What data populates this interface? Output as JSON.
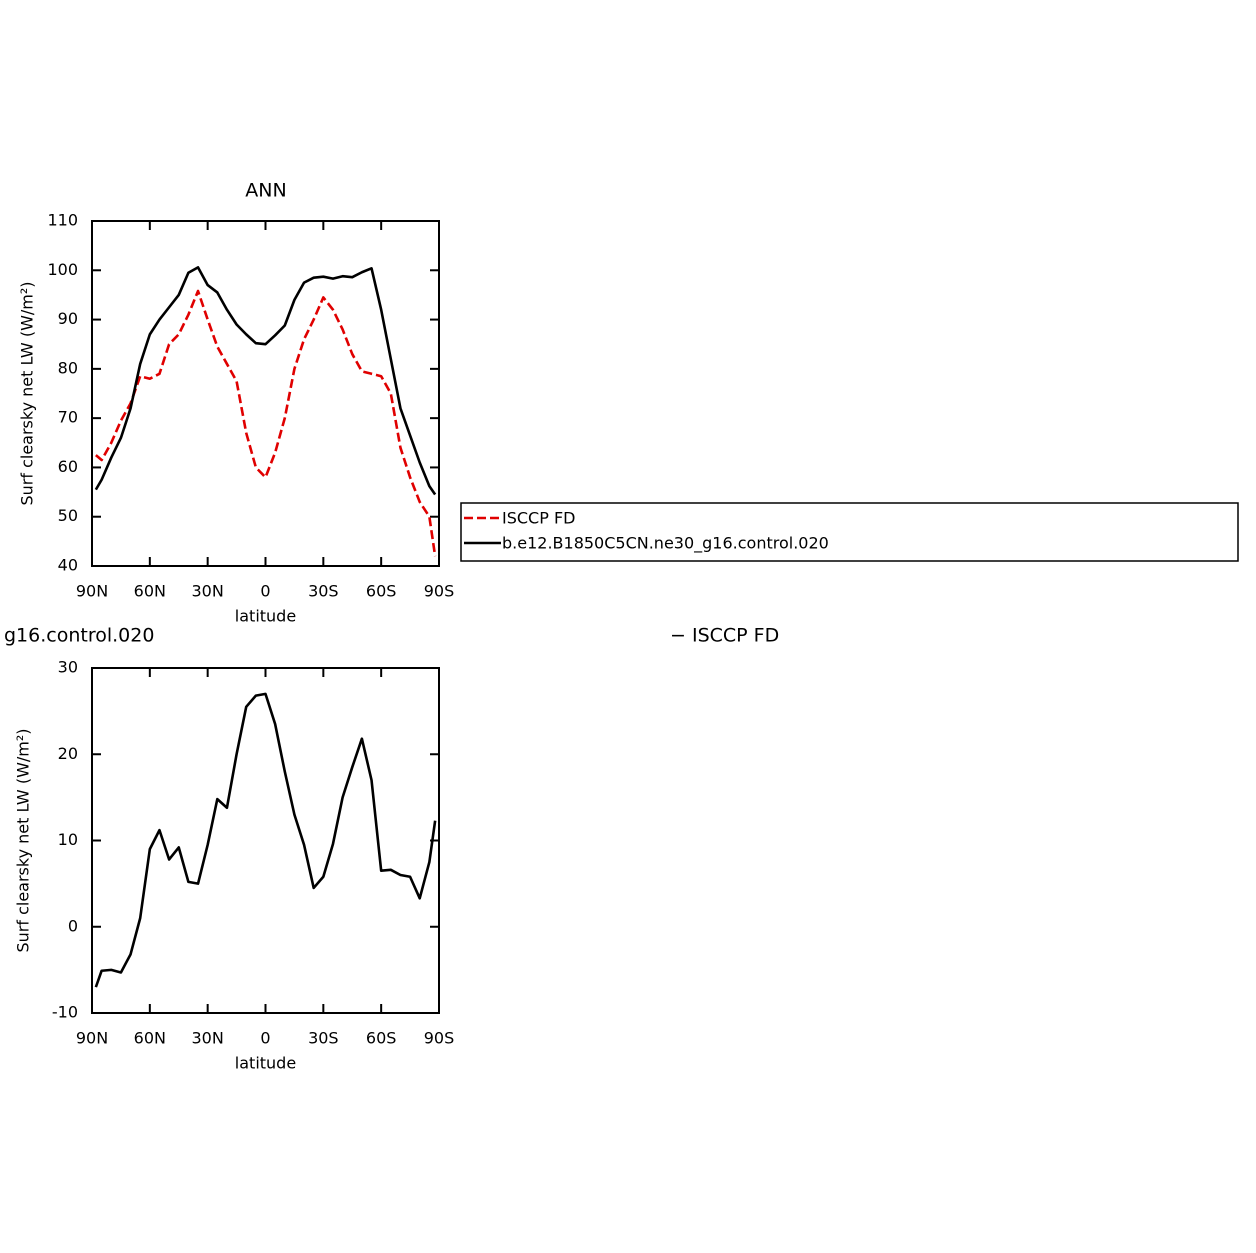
{
  "chart_data": [
    {
      "type": "line",
      "title": "ANN",
      "ylabel": "Surf clearsky net LW (W/m²)",
      "xlabel": "latitude",
      "x": [
        88,
        85,
        80,
        75,
        70,
        65,
        60,
        55,
        50,
        45,
        40,
        35,
        30,
        25,
        20,
        15,
        10,
        5,
        0,
        -5,
        -10,
        -15,
        -20,
        -25,
        -30,
        -35,
        -40,
        -45,
        -50,
        -55,
        -60,
        -65,
        -70,
        -75,
        -80,
        -85,
        -88
      ],
      "series": [
        {
          "name": "ISCCP FD",
          "color": "#e00000",
          "linestyle": "dashed",
          "values": [
            62.5,
            61.5,
            65,
            69.5,
            73,
            78.5,
            78,
            79,
            85,
            87,
            91,
            95.8,
            90,
            84.5,
            81,
            77.5,
            67,
            60,
            58,
            63,
            70,
            80,
            86,
            90,
            94.5,
            92,
            88,
            83,
            79.5,
            79,
            78.5,
            75,
            64,
            58,
            53,
            50,
            42
          ]
        },
        {
          "name": "b.e12.B1850C5CN.ne30_g16.control.020",
          "color": "#000000",
          "linestyle": "solid",
          "values": [
            55.5,
            57.5,
            62,
            66,
            72,
            81,
            87,
            90,
            92.5,
            95,
            99.5,
            100.6,
            97,
            95.5,
            92,
            89,
            87,
            85.2,
            85,
            86.8,
            88.8,
            94,
            97.5,
            98.5,
            98.7,
            98.3,
            98.8,
            98.6,
            99.6,
            100.4,
            92,
            82,
            72,
            66.5,
            61,
            56.2,
            54.5
          ]
        }
      ],
      "xlim": [
        90,
        -90
      ],
      "xticks": [
        {
          "value": 90,
          "label": "90N"
        },
        {
          "value": 60,
          "label": "60N"
        },
        {
          "value": 30,
          "label": "30N"
        },
        0,
        {
          "value": -30,
          "label": "30S"
        },
        {
          "value": -60,
          "label": "60S"
        },
        {
          "value": -90,
          "label": "90S"
        }
      ],
      "ylim": [
        40,
        110
      ],
      "yticks": [
        40,
        50,
        60,
        70,
        80,
        90,
        100,
        110
      ],
      "legend": "right"
    },
    {
      "type": "line",
      "title_left": "g16.control.020",
      "title_right": "− ISCCP FD",
      "ylabel": "Surf clearsky net LW (W/m²)",
      "xlabel": "latitude",
      "x": [
        88,
        85,
        80,
        75,
        70,
        65,
        60,
        55,
        50,
        45,
        40,
        35,
        30,
        25,
        20,
        15,
        10,
        5,
        0,
        -5,
        -10,
        -15,
        -20,
        -25,
        -30,
        -35,
        -40,
        -45,
        -50,
        -55,
        -60,
        -65,
        -70,
        -75,
        -80,
        -85,
        -88
      ],
      "series": [
        {
          "color": "#000000",
          "linestyle": "solid",
          "values": [
            -7,
            -5.1,
            -5,
            -5.3,
            -3.2,
            1,
            9,
            11.2,
            7.8,
            9.2,
            5.2,
            5,
            9.5,
            14.8,
            13.8,
            20,
            25.5,
            26.8,
            27,
            23.5,
            18,
            13,
            9.5,
            4.5,
            5.8,
            9.6,
            15,
            18.5,
            21.8,
            17,
            6.5,
            6.6,
            6,
            5.8,
            3.3,
            7.5,
            12.3
          ]
        }
      ],
      "xlim": [
        90,
        -90
      ],
      "xticks": [
        {
          "value": 90,
          "label": "90N"
        },
        {
          "value": 60,
          "label": "60N"
        },
        {
          "value": 30,
          "label": "30N"
        },
        0,
        {
          "value": -30,
          "label": "30S"
        },
        {
          "value": -60,
          "label": "60S"
        },
        {
          "value": -90,
          "label": "90S"
        }
      ],
      "ylim": [
        -10,
        30
      ],
      "yticks": [
        -10,
        0,
        10,
        20,
        30
      ]
    }
  ]
}
